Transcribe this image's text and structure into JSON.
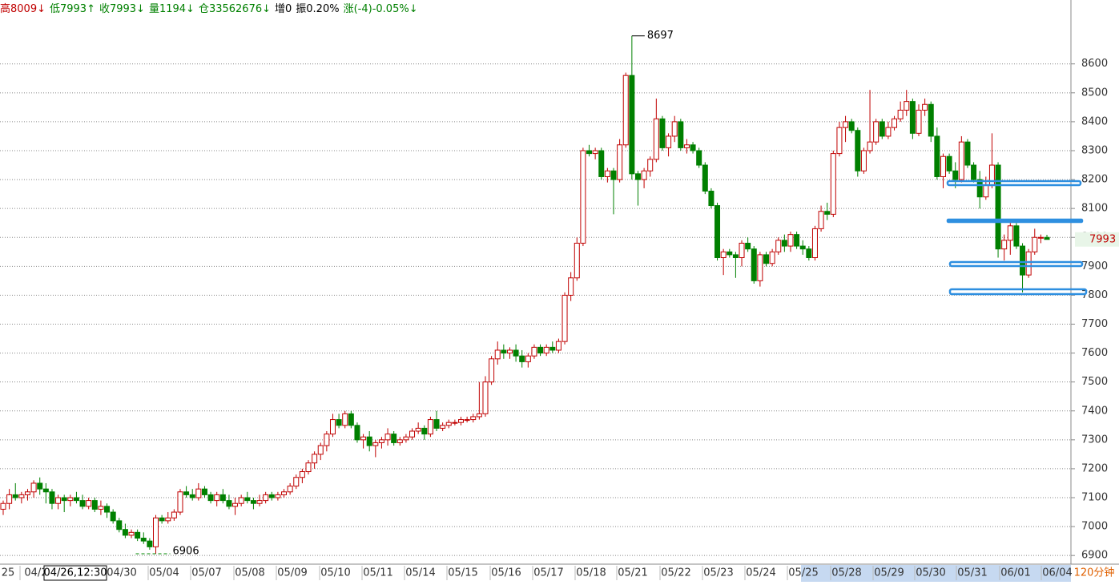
{
  "chart_data": {
    "type": "candlestick",
    "header": [
      {
        "text": "高8009↓",
        "color": "#c00000"
      },
      {
        "text": "低7993↑",
        "color": "#008000"
      },
      {
        "text": "收7993↓",
        "color": "#008000"
      },
      {
        "text": "量1194↓",
        "color": "#008000"
      },
      {
        "text": "仓33562676↓",
        "color": "#008000"
      },
      {
        "text": "增0",
        "color": "#000000"
      },
      {
        "text": "振0.20%",
        "color": "#000000"
      },
      {
        "text": "涨(-4)-0.05%↓",
        "color": "#008000"
      }
    ],
    "period": "120分钟",
    "cursor_label": "04/26,12:30",
    "xlabels": [
      "25",
      "04/2",
      "04/30",
      "05/04",
      "05/07",
      "05/08",
      "05/09",
      "05/10",
      "05/11",
      "05/14",
      "05/15",
      "05/16",
      "05/17",
      "05/18",
      "05/21",
      "05/22",
      "05/23",
      "05/24",
      "05/25",
      "05/28",
      "05/29",
      "05/30",
      "05/31",
      "06/01",
      "06/04"
    ],
    "ylim": [
      6870,
      8760
    ],
    "yticks": [
      6900,
      7000,
      7100,
      7200,
      7300,
      7400,
      7500,
      7600,
      7700,
      7800,
      7900,
      8000,
      8100,
      8200,
      8300,
      8400,
      8500,
      8600
    ],
    "grid": true,
    "up_color": "#c00000",
    "down_color": "#008000",
    "candles": [
      [
        7060,
        7090,
        7040,
        7080
      ],
      [
        7080,
        7130,
        7060,
        7110
      ],
      [
        7110,
        7150,
        7090,
        7100
      ],
      [
        7100,
        7120,
        7080,
        7110
      ],
      [
        7110,
        7130,
        7090,
        7120
      ],
      [
        7120,
        7160,
        7100,
        7150
      ],
      [
        7150,
        7170,
        7110,
        7130
      ],
      [
        7130,
        7150,
        7080,
        7120
      ],
      [
        7120,
        7130,
        7060,
        7080
      ],
      [
        7080,
        7110,
        7060,
        7100
      ],
      [
        7100,
        7110,
        7050,
        7090
      ],
      [
        7090,
        7110,
        7070,
        7100
      ],
      [
        7100,
        7120,
        7080,
        7090
      ],
      [
        7090,
        7110,
        7060,
        7070
      ],
      [
        7070,
        7100,
        7060,
        7090
      ],
      [
        7090,
        7100,
        7050,
        7060
      ],
      [
        7060,
        7090,
        7040,
        7070
      ],
      [
        7070,
        7080,
        7030,
        7050
      ],
      [
        7050,
        7060,
        7010,
        7020
      ],
      [
        7020,
        7030,
        6980,
        6990
      ],
      [
        6990,
        7010,
        6960,
        6970
      ],
      [
        6970,
        6990,
        6960,
        6980
      ],
      [
        6980,
        6990,
        6950,
        6960
      ],
      [
        6960,
        6980,
        6940,
        6950
      ],
      [
        6950,
        6960,
        6920,
        6930
      ],
      [
        6930,
        7040,
        6906,
        7030
      ],
      [
        7030,
        7040,
        7010,
        7020
      ],
      [
        7020,
        7050,
        7010,
        7030
      ],
      [
        7030,
        7060,
        7020,
        7050
      ],
      [
        7050,
        7130,
        7040,
        7120
      ],
      [
        7120,
        7140,
        7100,
        7110
      ],
      [
        7110,
        7130,
        7090,
        7100
      ],
      [
        7100,
        7150,
        7090,
        7130
      ],
      [
        7130,
        7140,
        7100,
        7110
      ],
      [
        7110,
        7120,
        7080,
        7090
      ],
      [
        7090,
        7120,
        7070,
        7110
      ],
      [
        7110,
        7130,
        7080,
        7090
      ],
      [
        7090,
        7110,
        7060,
        7070
      ],
      [
        7070,
        7100,
        7040,
        7080
      ],
      [
        7080,
        7110,
        7070,
        7100
      ],
      [
        7100,
        7120,
        7080,
        7090
      ],
      [
        7090,
        7100,
        7060,
        7080
      ],
      [
        7080,
        7110,
        7070,
        7090
      ],
      [
        7090,
        7120,
        7080,
        7110
      ],
      [
        7110,
        7120,
        7090,
        7100
      ],
      [
        7100,
        7120,
        7090,
        7110
      ],
      [
        7110,
        7130,
        7100,
        7120
      ],
      [
        7120,
        7150,
        7110,
        7140
      ],
      [
        7140,
        7180,
        7130,
        7170
      ],
      [
        7170,
        7200,
        7150,
        7190
      ],
      [
        7190,
        7230,
        7180,
        7220
      ],
      [
        7220,
        7260,
        7200,
        7250
      ],
      [
        7250,
        7290,
        7230,
        7280
      ],
      [
        7280,
        7330,
        7260,
        7320
      ],
      [
        7320,
        7390,
        7310,
        7370
      ],
      [
        7370,
        7390,
        7340,
        7350
      ],
      [
        7350,
        7400,
        7340,
        7390
      ],
      [
        7390,
        7400,
        7340,
        7350
      ],
      [
        7350,
        7360,
        7290,
        7300
      ],
      [
        7300,
        7320,
        7270,
        7310
      ],
      [
        7310,
        7330,
        7260,
        7280
      ],
      [
        7280,
        7300,
        7240,
        7290
      ],
      [
        7290,
        7310,
        7270,
        7300
      ],
      [
        7300,
        7340,
        7280,
        7320
      ],
      [
        7320,
        7330,
        7280,
        7290
      ],
      [
        7290,
        7310,
        7280,
        7300
      ],
      [
        7300,
        7320,
        7290,
        7310
      ],
      [
        7310,
        7340,
        7300,
        7330
      ],
      [
        7330,
        7360,
        7320,
        7340
      ],
      [
        7340,
        7350,
        7300,
        7320
      ],
      [
        7320,
        7380,
        7310,
        7370
      ],
      [
        7370,
        7400,
        7330,
        7340
      ],
      [
        7340,
        7360,
        7330,
        7350
      ],
      [
        7350,
        7370,
        7340,
        7360
      ],
      [
        7360,
        7370,
        7350,
        7360
      ],
      [
        7360,
        7380,
        7350,
        7370
      ],
      [
        7370,
        7380,
        7360,
        7370
      ],
      [
        7370,
        7390,
        7360,
        7380
      ],
      [
        7380,
        7500,
        7370,
        7390
      ],
      [
        7390,
        7520,
        7380,
        7500
      ],
      [
        7500,
        7590,
        7490,
        7580
      ],
      [
        7580,
        7640,
        7560,
        7610
      ],
      [
        7610,
        7630,
        7580,
        7600
      ],
      [
        7600,
        7620,
        7580,
        7610
      ],
      [
        7610,
        7630,
        7570,
        7590
      ],
      [
        7590,
        7610,
        7550,
        7570
      ],
      [
        7570,
        7600,
        7550,
        7590
      ],
      [
        7590,
        7630,
        7580,
        7620
      ],
      [
        7620,
        7630,
        7590,
        7600
      ],
      [
        7600,
        7630,
        7590,
        7620
      ],
      [
        7620,
        7640,
        7600,
        7610
      ],
      [
        7610,
        7650,
        7600,
        7640
      ],
      [
        7640,
        7810,
        7630,
        7800
      ],
      [
        7800,
        7880,
        7780,
        7860
      ],
      [
        7860,
        8000,
        7850,
        7980
      ],
      [
        7980,
        8310,
        7970,
        8300
      ],
      [
        8300,
        8320,
        8280,
        8290
      ],
      [
        8290,
        8310,
        8270,
        8300
      ],
      [
        8300,
        8310,
        8200,
        8210
      ],
      [
        8210,
        8240,
        8190,
        8230
      ],
      [
        8230,
        8240,
        8080,
        8200
      ],
      [
        8200,
        8340,
        8190,
        8320
      ],
      [
        8320,
        8570,
        8310,
        8560
      ],
      [
        8560,
        8697,
        8200,
        8220
      ],
      [
        8220,
        8230,
        8110,
        8200
      ],
      [
        8200,
        8240,
        8170,
        8230
      ],
      [
        8230,
        8280,
        8210,
        8270
      ],
      [
        8270,
        8480,
        8260,
        8410
      ],
      [
        8410,
        8420,
        8300,
        8310
      ],
      [
        8310,
        8360,
        8280,
        8350
      ],
      [
        8350,
        8420,
        8330,
        8400
      ],
      [
        8400,
        8410,
        8300,
        8310
      ],
      [
        8310,
        8340,
        8290,
        8320
      ],
      [
        8320,
        8330,
        8290,
        8300
      ],
      [
        8300,
        8310,
        8240,
        8250
      ],
      [
        8250,
        8260,
        8150,
        8160
      ],
      [
        8160,
        8170,
        8100,
        8110
      ],
      [
        8110,
        8120,
        7920,
        7930
      ],
      [
        7930,
        7960,
        7870,
        7950
      ],
      [
        7950,
        7960,
        7930,
        7940
      ],
      [
        7940,
        7950,
        7860,
        7930
      ],
      [
        7930,
        7990,
        7900,
        7980
      ],
      [
        7980,
        8000,
        7950,
        7960
      ],
      [
        7960,
        7970,
        7840,
        7850
      ],
      [
        7850,
        7950,
        7830,
        7940
      ],
      [
        7940,
        7950,
        7900,
        7910
      ],
      [
        7910,
        7960,
        7900,
        7950
      ],
      [
        7950,
        8000,
        7940,
        7990
      ],
      [
        7990,
        8010,
        7950,
        7970
      ],
      [
        7970,
        8020,
        7950,
        8010
      ],
      [
        8010,
        8020,
        7960,
        7970
      ],
      [
        7970,
        7990,
        7940,
        7960
      ],
      [
        7960,
        7970,
        7920,
        7930
      ],
      [
        7930,
        8040,
        7920,
        8030
      ],
      [
        8030,
        8110,
        8020,
        8090
      ],
      [
        8090,
        8120,
        8060,
        8080
      ],
      [
        8080,
        8300,
        8070,
        8290
      ],
      [
        8290,
        8400,
        8280,
        8380
      ],
      [
        8380,
        8420,
        8330,
        8400
      ],
      [
        8400,
        8410,
        8360,
        8370
      ],
      [
        8370,
        8380,
        8210,
        8230
      ],
      [
        8230,
        8310,
        8220,
        8300
      ],
      [
        8300,
        8510,
        8290,
        8330
      ],
      [
        8330,
        8410,
        8320,
        8400
      ],
      [
        8400,
        8410,
        8340,
        8350
      ],
      [
        8350,
        8400,
        8340,
        8380
      ],
      [
        8380,
        8420,
        8370,
        8410
      ],
      [
        8410,
        8470,
        8400,
        8440
      ],
      [
        8440,
        8510,
        8420,
        8470
      ],
      [
        8470,
        8480,
        8340,
        8360
      ],
      [
        8360,
        8460,
        8350,
        8440
      ],
      [
        8440,
        8480,
        8420,
        8460
      ],
      [
        8460,
        8470,
        8330,
        8350
      ],
      [
        8350,
        8380,
        8200,
        8210
      ],
      [
        8210,
        8290,
        8170,
        8280
      ],
      [
        8280,
        8290,
        8220,
        8230
      ],
      [
        8230,
        8260,
        8170,
        8200
      ],
      [
        8200,
        8350,
        8190,
        8330
      ],
      [
        8330,
        8340,
        8240,
        8250
      ],
      [
        8250,
        8260,
        8190,
        8200
      ],
      [
        8200,
        8230,
        8100,
        8140
      ],
      [
        8140,
        8210,
        8130,
        8180
      ],
      [
        8180,
        8360,
        8170,
        8250
      ],
      [
        8250,
        8260,
        7930,
        7960
      ],
      [
        7960,
        8010,
        7920,
        7990
      ],
      [
        7990,
        8050,
        7940,
        8040
      ],
      [
        8040,
        8050,
        7960,
        7970
      ],
      [
        7970,
        7980,
        7810,
        7870
      ],
      [
        7870,
        7960,
        7860,
        7950
      ],
      [
        7950,
        8030,
        7940,
        8000
      ],
      [
        8000,
        8010,
        7980,
        8000
      ],
      [
        8000,
        8009,
        7993,
        7993
      ]
    ]
  }
}
